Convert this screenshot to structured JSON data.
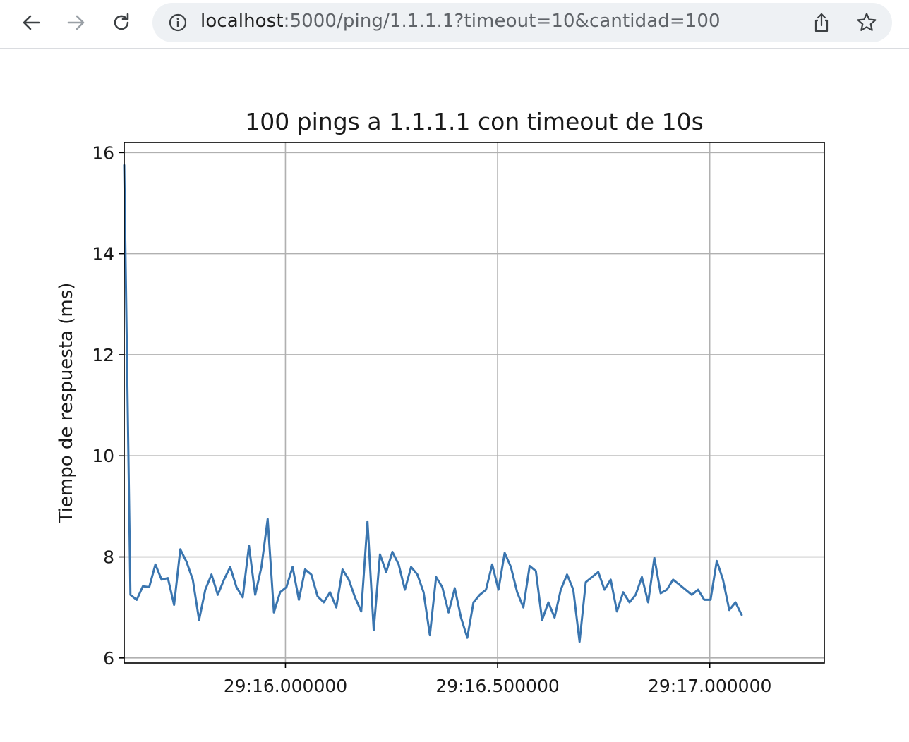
{
  "browser": {
    "url_host": "localhost",
    "url_rest": ":5000/ping/1.1.1.1?timeout=10&cantidad=100",
    "icons": [
      "back-arrow-icon",
      "forward-arrow-icon",
      "reload-icon",
      "site-info-icon",
      "share-icon",
      "bookmark-star-icon"
    ]
  },
  "chart_data": {
    "type": "line",
    "title": "100 pings a 1.1.1.1 con timeout de 10s",
    "xlabel": "",
    "ylabel": "Tiempo de respuesta (ms)",
    "x_unit": "seconds (clock 29:ss)",
    "x_start": 15.62,
    "x_step": 0.0147,
    "xlim": [
      15.62,
      17.27
    ],
    "ylim": [
      5.9,
      16.2
    ],
    "xticks": [
      {
        "value": 16.0,
        "label": "29:16.000000"
      },
      {
        "value": 16.5,
        "label": "29:16.500000"
      },
      {
        "value": 17.0,
        "label": "29:17.000000"
      }
    ],
    "yticks": [
      {
        "value": 6,
        "label": "6"
      },
      {
        "value": 8,
        "label": "8"
      },
      {
        "value": 10,
        "label": "10"
      },
      {
        "value": 12,
        "label": "12"
      },
      {
        "value": 14,
        "label": "14"
      },
      {
        "value": 16,
        "label": "16"
      }
    ],
    "grid": true,
    "legend": "none",
    "line_color": "#3a75af",
    "series": [
      {
        "values": [
          15.75,
          7.25,
          7.15,
          7.42,
          7.4,
          7.85,
          7.55,
          7.58,
          7.05,
          8.15,
          7.9,
          7.55,
          6.75,
          7.35,
          7.65,
          7.25,
          7.55,
          7.8,
          7.4,
          7.2,
          8.22,
          7.25,
          7.8,
          8.75,
          6.9,
          7.3,
          7.4,
          7.8,
          7.15,
          7.75,
          7.65,
          7.22,
          7.1,
          7.3,
          7.0,
          7.75,
          7.55,
          7.2,
          6.92,
          8.7,
          6.55,
          8.05,
          7.7,
          8.1,
          7.85,
          7.35,
          7.8,
          7.65,
          7.3,
          6.45,
          7.6,
          7.4,
          6.9,
          7.38,
          6.8,
          6.4,
          7.1,
          7.25,
          7.35,
          7.85,
          7.35,
          8.08,
          7.8,
          7.3,
          7.0,
          7.82,
          7.72,
          6.75,
          7.1,
          6.8,
          7.35,
          7.65,
          7.35,
          6.32,
          7.5,
          7.6,
          7.7,
          7.35,
          7.55,
          6.92,
          7.3,
          7.1,
          7.25,
          7.6,
          7.1,
          7.98,
          7.28,
          7.35,
          7.55,
          7.45,
          7.35,
          7.25,
          7.35,
          7.15,
          7.15,
          7.92,
          7.55,
          6.95,
          7.1,
          6.85
        ]
      }
    ]
  }
}
